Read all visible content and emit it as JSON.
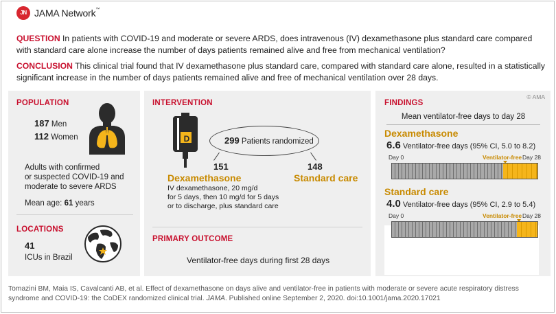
{
  "header": {
    "logo_text": "JN",
    "brand": "JAMA Network",
    "trademark": "™",
    "question_label": "QUESTION",
    "question_text": "In patients with COVID-19 and moderate or severe ARDS, does intravenous (IV) dexamethasone plus standard care compared with standard care alone increase the number of days patients remained alive and free from mechanical ventilation?",
    "conclusion_label": "CONCLUSION",
    "conclusion_text": "This clinical trial found that IV dexamethasone plus standard care, compared with standard care alone, resulted in a statistically significant increase in the number of days patients remained alive and free of mechanical ventilation over 28 days.",
    "copyright": "© AMA"
  },
  "population": {
    "title": "POPULATION",
    "men_count": "187",
    "men_label": "Men",
    "women_count": "112",
    "women_label": "Women",
    "description_line1": "Adults with confirmed",
    "description_line2": "or suspected COVID-19 and",
    "description_line3": "moderate to severe ARDS",
    "mean_age_label": "Mean age:",
    "mean_age_value": "61",
    "mean_age_unit": "years"
  },
  "locations": {
    "title": "LOCATIONS",
    "count": "41",
    "label": "ICUs in Brazil"
  },
  "intervention": {
    "title": "INTERVENTION",
    "bag_letter": "D",
    "randomized_count": "299",
    "randomized_label": "Patients randomized",
    "dex_count": "151",
    "dex_label": "Dexamethasone",
    "dex_desc_line1": "IV dexamethasone, 20 mg/d",
    "dex_desc_line2": "for 5 days, then 10 mg/d for 5 days",
    "dex_desc_line3": "or to discharge, plus standard care",
    "std_count": "148",
    "std_label": "Standard care"
  },
  "primary_outcome": {
    "title": "PRIMARY OUTCOME",
    "text": "Ventilator-free days during first 28 days"
  },
  "findings": {
    "title": "FINDINGS",
    "subtitle": "Mean ventilator-free days to day 28",
    "arms": [
      {
        "name": "Dexamethasone",
        "value": "6.6",
        "stat_text": "Ventilator-free days (95% CI, 5.0 to 8.2)",
        "day0_label": "Day 0",
        "day28_label": "Day 28",
        "vf_label": "Ventilator-free",
        "ventilator_free_days": 6.6,
        "total_days": 28
      },
      {
        "name": "Standard care",
        "value": "4.0",
        "stat_text": "Ventilator-free days (95% CI, 2.9 to 5.4)",
        "day0_label": "Day 0",
        "day28_label": "Day 28",
        "vf_label": "Ventilator-free",
        "ventilator_free_days": 4.0,
        "total_days": 28
      }
    ]
  },
  "citation": {
    "text_before": "Tomazini BM, Maia IS, Cavalcanti AB, et al. Effect of dexamethasone on days alive and ventilator-free in patients with moderate or severe acute respiratory distress syndrome and COVID-19: the CoDEX randomized clinical trial.",
    "journal": "JAMA",
    "text_after": ". Published online September 2, 2020. doi:10.1001/jama.2020.17021"
  },
  "colors": {
    "red": "#c8102e",
    "gold": "#c88a00",
    "bar_yellow": "#f5b51b",
    "bar_gray": "#a9a9a9",
    "panel_bg": "#efefef"
  }
}
